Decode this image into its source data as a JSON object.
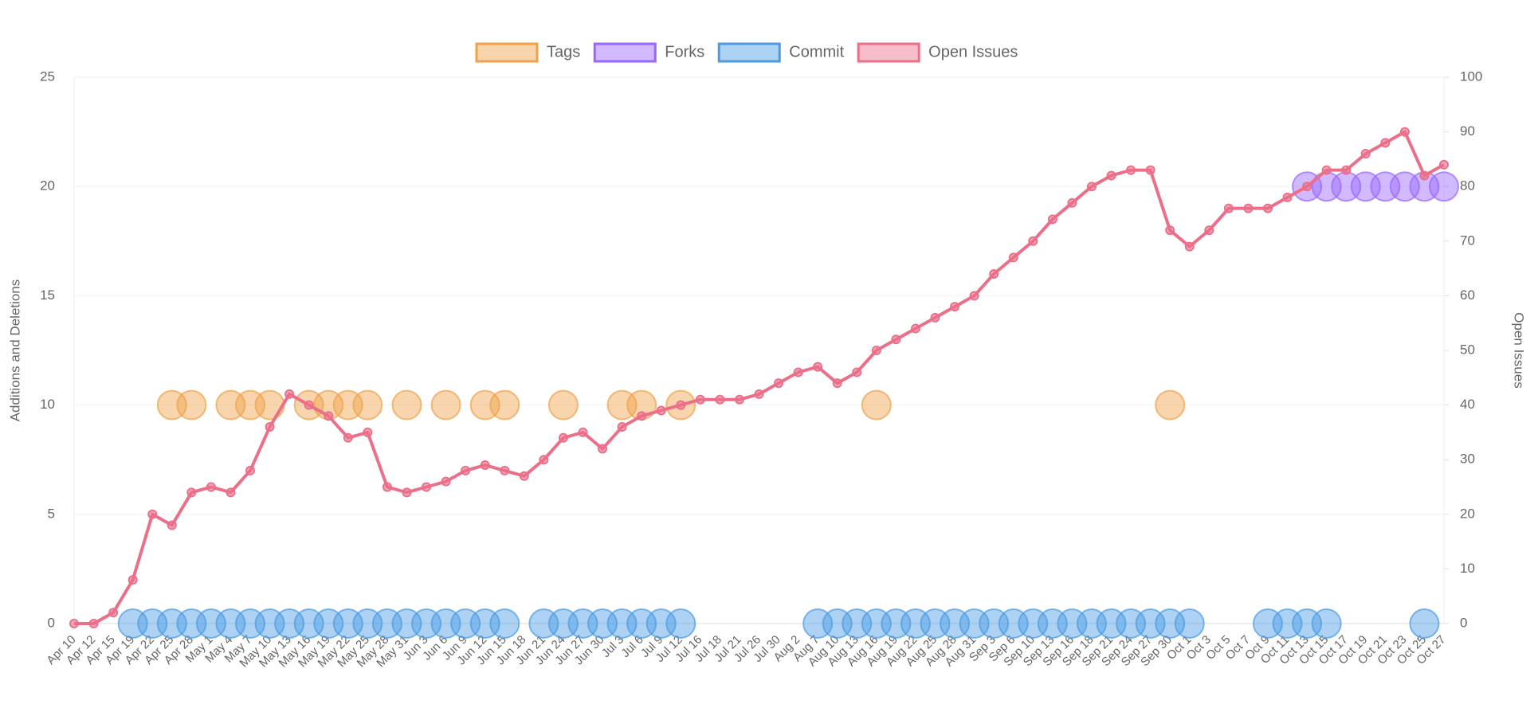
{
  "chart_data": {
    "type": "line",
    "y_label": "Additions and Deletions",
    "y2_label": "Open Issues",
    "x": [
      "Apr 10",
      "Apr 12",
      "Apr 15",
      "Apr 19",
      "Apr 22",
      "Apr 25",
      "Apr 28",
      "May 1",
      "May 4",
      "May 7",
      "May 10",
      "May 13",
      "May 16",
      "May 19",
      "May 22",
      "May 25",
      "May 28",
      "May 31",
      "Jun 3",
      "Jun 6",
      "Jun 9",
      "Jun 12",
      "Jun 15",
      "Jun 18",
      "Jun 21",
      "Jun 24",
      "Jun 27",
      "Jun 30",
      "Jul 3",
      "Jul 6",
      "Jul 9",
      "Jul 12",
      "Jul 16",
      "Jul 18",
      "Jul 21",
      "Jul 26",
      "Jul 30",
      "Aug 2",
      "Aug 7",
      "Aug 10",
      "Aug 13",
      "Aug 16",
      "Aug 19",
      "Aug 22",
      "Aug 25",
      "Aug 28",
      "Aug 31",
      "Sep 3",
      "Sep 6",
      "Sep 10",
      "Sep 13",
      "Sep 16",
      "Sep 18",
      "Sep 21",
      "Sep 24",
      "Sep 27",
      "Sep 30",
      "Oct 1",
      "Oct 3",
      "Oct 5",
      "Oct 7",
      "Oct 9",
      "Oct 11",
      "Oct 13",
      "Oct 15",
      "Oct 17",
      "Oct 19",
      "Oct 21",
      "Oct 23",
      "Oct 25",
      "Oct 27"
    ],
    "series": [
      {
        "name": "Tags",
        "type": "scatter",
        "color": "#f0a14a",
        "values": [
          null,
          null,
          null,
          null,
          null,
          10,
          10,
          null,
          10,
          10,
          10,
          null,
          10,
          10,
          10,
          10,
          null,
          10,
          null,
          10,
          null,
          10,
          10,
          null,
          null,
          10,
          null,
          null,
          10,
          10,
          null,
          10,
          null,
          null,
          null,
          null,
          null,
          null,
          null,
          null,
          null,
          10,
          null,
          null,
          null,
          null,
          null,
          null,
          null,
          null,
          null,
          null,
          null,
          null,
          null,
          null,
          10,
          null,
          null,
          null,
          null,
          null,
          null,
          null,
          null,
          null,
          null,
          null,
          null,
          null,
          null
        ]
      },
      {
        "name": "Forks",
        "type": "scatter",
        "color": "#9966ff",
        "values": [
          null,
          null,
          null,
          null,
          null,
          null,
          null,
          null,
          null,
          null,
          null,
          null,
          null,
          null,
          null,
          null,
          null,
          null,
          null,
          null,
          null,
          null,
          null,
          null,
          null,
          null,
          null,
          null,
          null,
          null,
          null,
          null,
          null,
          null,
          null,
          null,
          null,
          null,
          null,
          null,
          null,
          null,
          null,
          null,
          null,
          null,
          null,
          null,
          null,
          null,
          null,
          null,
          null,
          null,
          null,
          null,
          null,
          null,
          null,
          null,
          null,
          null,
          null,
          20,
          20,
          20,
          20,
          20,
          20,
          20,
          20
        ]
      },
      {
        "name": "Commit",
        "type": "scatter",
        "color": "#4a9be4",
        "values": [
          null,
          null,
          null,
          0,
          0,
          0,
          0,
          0,
          0,
          0,
          0,
          0,
          0,
          0,
          0,
          0,
          0,
          0,
          0,
          0,
          0,
          0,
          0,
          null,
          0,
          0,
          0,
          0,
          0,
          0,
          0,
          0,
          null,
          null,
          null,
          null,
          null,
          null,
          0,
          0,
          0,
          0,
          0,
          0,
          0,
          0,
          0,
          0,
          0,
          0,
          0,
          0,
          0,
          0,
          0,
          0,
          0,
          0,
          null,
          null,
          null,
          0,
          0,
          0,
          0,
          null,
          null,
          null,
          null,
          0,
          null
        ]
      },
      {
        "name": "Open Issues",
        "type": "line",
        "axis": "y2",
        "color": "#ec6f8a",
        "values": [
          0,
          0,
          2,
          8,
          20,
          18,
          24,
          25,
          24,
          28,
          36,
          42,
          40,
          38,
          34,
          35,
          25,
          24,
          25,
          26,
          28,
          29,
          28,
          27,
          30,
          34,
          35,
          32,
          36,
          38,
          39,
          40,
          41,
          41,
          41,
          42,
          44,
          46,
          47,
          44,
          46,
          50,
          52,
          54,
          56,
          58,
          60,
          64,
          67,
          70,
          74,
          77,
          80,
          82,
          83,
          83,
          72,
          69,
          72,
          76,
          76,
          76,
          78,
          80,
          83,
          83,
          86,
          88,
          90,
          82,
          84
        ]
      }
    ],
    "ylim": [
      0,
      25
    ],
    "yticks": [
      0,
      5,
      10,
      15,
      20,
      25
    ],
    "y2lim": [
      0,
      100
    ],
    "y2ticks": [
      0,
      10,
      20,
      30,
      40,
      50,
      60,
      70,
      80,
      90,
      100
    ],
    "grid": true,
    "legend": "top"
  }
}
